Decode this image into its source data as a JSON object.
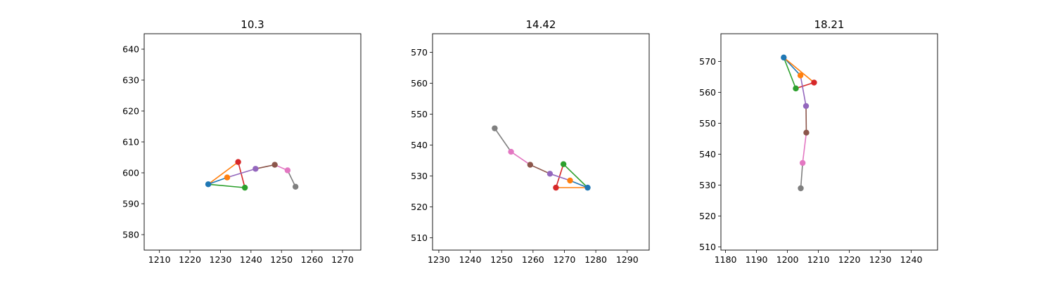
{
  "chart_data": [
    {
      "type": "line",
      "title": "10.3",
      "xlim": [
        1205,
        1276
      ],
      "ylim": [
        575,
        645
      ],
      "xticks": [
        1210,
        1220,
        1230,
        1240,
        1250,
        1260,
        1270
      ],
      "yticks": [
        580,
        590,
        600,
        610,
        620,
        630,
        640
      ],
      "points": [
        {
          "x": 1226,
          "y": 596.3,
          "color": "#1f77b4"
        },
        {
          "x": 1232.2,
          "y": 598.5,
          "color": "#ff7f0e"
        },
        {
          "x": 1238,
          "y": 595.2,
          "color": "#2ca02c"
        },
        {
          "x": 1235.8,
          "y": 603.5,
          "color": "#d62728"
        },
        {
          "x": 1241.5,
          "y": 601.3,
          "color": "#9467bd"
        },
        {
          "x": 1247.8,
          "y": 602.6,
          "color": "#8c564b"
        },
        {
          "x": 1252,
          "y": 600.8,
          "color": "#e377c2"
        },
        {
          "x": 1254.6,
          "y": 595.5,
          "color": "#7f7f7f"
        }
      ],
      "segments": [
        {
          "from": 0,
          "to": 1,
          "color": "#1f77b4"
        },
        {
          "from": 0,
          "to": 3,
          "color": "#ff7f0e"
        },
        {
          "from": 0,
          "to": 2,
          "color": "#2ca02c"
        },
        {
          "from": 2,
          "to": 3,
          "color": "#d62728"
        },
        {
          "from": 1,
          "to": 4,
          "color": "#9467bd"
        },
        {
          "from": 4,
          "to": 5,
          "color": "#8c564b"
        },
        {
          "from": 5,
          "to": 6,
          "color": "#e377c2"
        },
        {
          "from": 6,
          "to": 7,
          "color": "#7f7f7f"
        }
      ]
    },
    {
      "type": "line",
      "title": "14.42",
      "xlim": [
        1228,
        1297
      ],
      "ylim": [
        506,
        576
      ],
      "xticks": [
        1230,
        1240,
        1250,
        1260,
        1270,
        1280,
        1290
      ],
      "yticks": [
        510,
        520,
        530,
        540,
        550,
        560,
        570
      ],
      "points": [
        {
          "x": 1277.4,
          "y": 526.2,
          "color": "#1f77b4"
        },
        {
          "x": 1271.8,
          "y": 528.5,
          "color": "#ff7f0e"
        },
        {
          "x": 1269.7,
          "y": 533.8,
          "color": "#2ca02c"
        },
        {
          "x": 1267.3,
          "y": 526.2,
          "color": "#d62728"
        },
        {
          "x": 1265.4,
          "y": 530.7,
          "color": "#9467bd"
        },
        {
          "x": 1259.1,
          "y": 533.6,
          "color": "#8c564b"
        },
        {
          "x": 1253,
          "y": 537.8,
          "color": "#e377c2"
        },
        {
          "x": 1247.8,
          "y": 545.4,
          "color": "#7f7f7f"
        }
      ],
      "segments": [
        {
          "from": 0,
          "to": 1,
          "color": "#1f77b4"
        },
        {
          "from": 0,
          "to": 3,
          "color": "#ff7f0e"
        },
        {
          "from": 0,
          "to": 2,
          "color": "#2ca02c"
        },
        {
          "from": 2,
          "to": 3,
          "color": "#d62728"
        },
        {
          "from": 1,
          "to": 4,
          "color": "#9467bd"
        },
        {
          "from": 4,
          "to": 5,
          "color": "#8c564b"
        },
        {
          "from": 5,
          "to": 6,
          "color": "#e377c2"
        },
        {
          "from": 6,
          "to": 7,
          "color": "#7f7f7f"
        }
      ]
    },
    {
      "type": "line",
      "title": "18.21",
      "xlim": [
        1178.5,
        1248.5
      ],
      "ylim": [
        509,
        579
      ],
      "xticks": [
        1180,
        1190,
        1200,
        1210,
        1220,
        1230,
        1240
      ],
      "yticks": [
        510,
        520,
        530,
        540,
        550,
        560,
        570
      ],
      "points": [
        {
          "x": 1198.8,
          "y": 571.3,
          "color": "#1f77b4"
        },
        {
          "x": 1204.2,
          "y": 565.5,
          "color": "#ff7f0e"
        },
        {
          "x": 1202.7,
          "y": 561.3,
          "color": "#2ca02c"
        },
        {
          "x": 1208.6,
          "y": 563.2,
          "color": "#d62728"
        },
        {
          "x": 1206,
          "y": 555.6,
          "color": "#9467bd"
        },
        {
          "x": 1206.1,
          "y": 547,
          "color": "#8c564b"
        },
        {
          "x": 1204.9,
          "y": 537.2,
          "color": "#e377c2"
        },
        {
          "x": 1204.3,
          "y": 529,
          "color": "#7f7f7f"
        }
      ],
      "segments": [
        {
          "from": 0,
          "to": 1,
          "color": "#1f77b4"
        },
        {
          "from": 0,
          "to": 3,
          "color": "#ff7f0e"
        },
        {
          "from": 0,
          "to": 2,
          "color": "#2ca02c"
        },
        {
          "from": 2,
          "to": 3,
          "color": "#d62728"
        },
        {
          "from": 1,
          "to": 4,
          "color": "#9467bd"
        },
        {
          "from": 4,
          "to": 5,
          "color": "#8c564b"
        },
        {
          "from": 5,
          "to": 6,
          "color": "#e377c2"
        },
        {
          "from": 6,
          "to": 7,
          "color": "#7f7f7f"
        }
      ]
    }
  ]
}
